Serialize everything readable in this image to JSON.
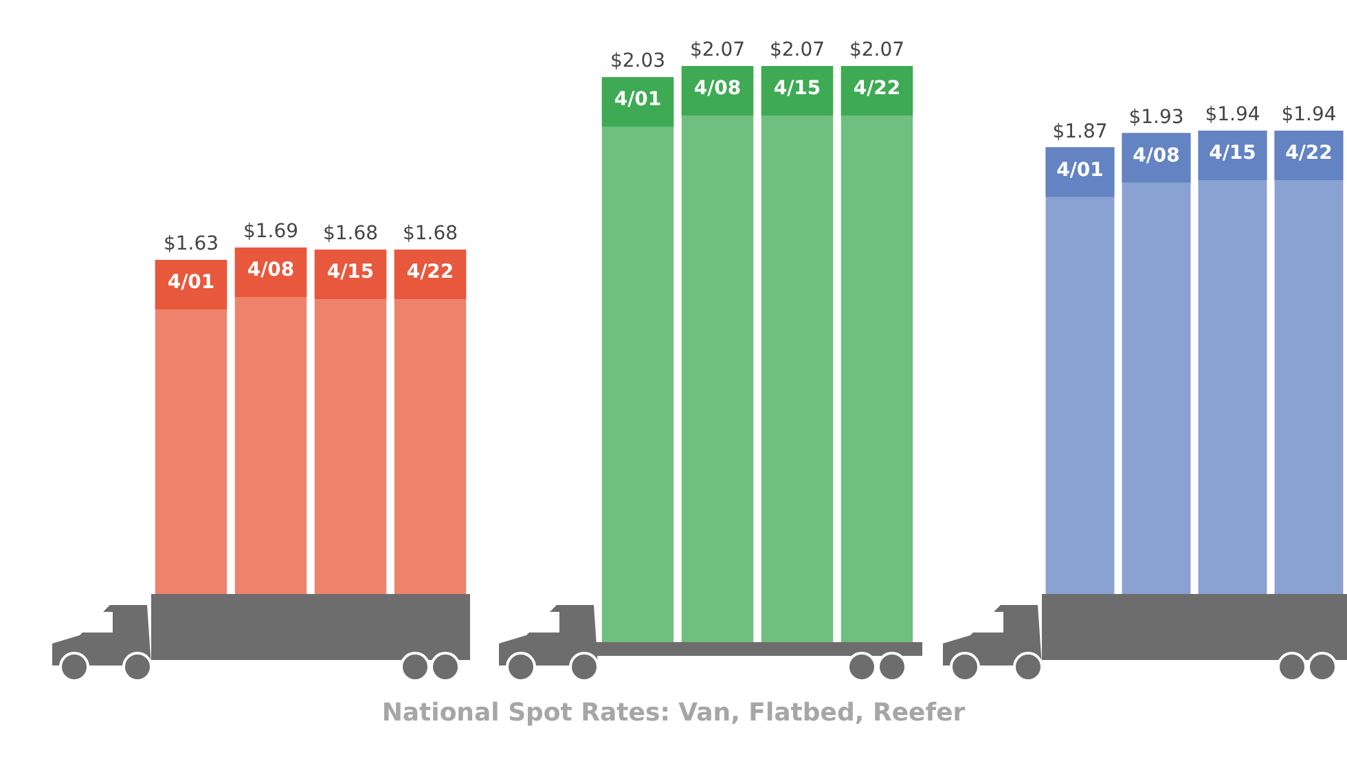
{
  "chart_data": [
    {
      "type": "bar",
      "categories": [
        "4/01",
        "4/08",
        "4/15",
        "4/22"
      ],
      "values": [
        1.63,
        1.69,
        1.68,
        1.68
      ],
      "color": "#ee826d",
      "value_labels": [
        "$1.63",
        "$1.69",
        "$1.68",
        "$1.68"
      ]
    },
    {
      "type": "bar",
      "title": "National Spot Rates: Van, Flatbed, Reefer",
      "categories": [
        "4/01",
        "4/08",
        "4/15",
        "4/22"
      ],
      "values": [
        2.03,
        2.07,
        2.07,
        2.07
      ],
      "color": "#6fbf7f",
      "value_labels": [
        "$2.03",
        "$2.07",
        "$2.07",
        "$2.07"
      ]
    },
    {
      "type": "bar",
      "categories": [
        "4/01",
        "4/08",
        "4/15",
        "4/22"
      ],
      "values": [
        1.87,
        1.93,
        1.94,
        1.94
      ],
      "color": "#8aa2d1",
      "value_labels": [
        "$1.87",
        "$1.93",
        "$1.94",
        "$1.94"
      ]
    }
  ]
}
